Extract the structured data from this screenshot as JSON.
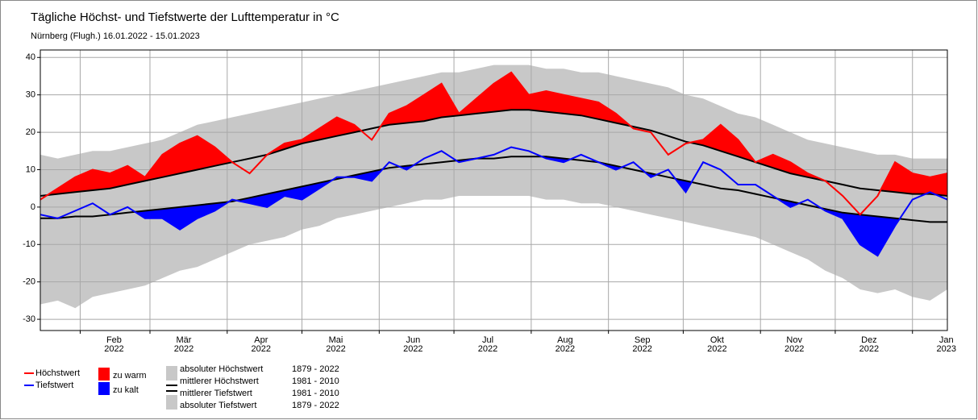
{
  "chart_data": {
    "type": "band-line",
    "title": "Tägliche Höchst- und Tiefstwerte der Lufttemperatur in °C",
    "subtitle": "Nürnberg (Flugh.) 16.01.2022 - 15.01.2023",
    "x": [
      0,
      7,
      14,
      21,
      28,
      35,
      42,
      49,
      56,
      63,
      70,
      77,
      84,
      91,
      98,
      105,
      112,
      119,
      126,
      133,
      140,
      147,
      154,
      161,
      168,
      175,
      182,
      189,
      196,
      203,
      210,
      217,
      224,
      231,
      238,
      245,
      252,
      259,
      266,
      273,
      280,
      287,
      294,
      301,
      308,
      315,
      322,
      329,
      336,
      343,
      350,
      357,
      364
    ],
    "xlim": [
      0,
      364
    ],
    "xticks": [
      {
        "value": 16,
        "label": "Feb\n2022"
      },
      {
        "value": 44,
        "label": "Mär\n2022"
      },
      {
        "value": 75,
        "label": "Apr\n2022"
      },
      {
        "value": 105,
        "label": "Mai\n2022"
      },
      {
        "value": 136,
        "label": "Jun\n2022"
      },
      {
        "value": 166,
        "label": "Jul\n2022"
      },
      {
        "value": 197,
        "label": "Aug\n2022"
      },
      {
        "value": 228,
        "label": "Sep\n2022"
      },
      {
        "value": 258,
        "label": "Okt\n2022"
      },
      {
        "value": 289,
        "label": "Nov\n2022"
      },
      {
        "value": 319,
        "label": "Dez\n2022"
      },
      {
        "value": 350,
        "label": "Jan\n2023"
      }
    ],
    "ylim": [
      -33,
      42
    ],
    "yticks": [
      -30,
      -20,
      -10,
      0,
      10,
      20,
      30,
      40
    ],
    "grid": true,
    "series": [
      {
        "name": "Höchstwert",
        "color": "#ff0000",
        "values": [
          2,
          5,
          8,
          10,
          9,
          11,
          8,
          14,
          17,
          19,
          16,
          12,
          9,
          14,
          17,
          18,
          21,
          24,
          22,
          18,
          25,
          27,
          30,
          33,
          25,
          29,
          33,
          36,
          30,
          31,
          30,
          29,
          28,
          25,
          21,
          20,
          14,
          17,
          18,
          22,
          18,
          12,
          14,
          12,
          9,
          7,
          3,
          -2,
          3,
          12,
          9,
          8,
          9
        ]
      },
      {
        "name": "Tiefstwert",
        "color": "#0000ff",
        "values": [
          -2,
          -3,
          -1,
          1,
          -2,
          0,
          -3,
          -3,
          -6,
          -3,
          -1,
          2,
          1,
          0,
          3,
          2,
          5,
          8,
          8,
          7,
          12,
          10,
          13,
          15,
          12,
          13,
          14,
          16,
          15,
          13,
          12,
          14,
          12,
          10,
          12,
          8,
          10,
          4,
          12,
          10,
          6,
          6,
          3,
          0,
          2,
          -1,
          -3,
          -10,
          -13,
          -5,
          2,
          4,
          2
        ]
      },
      {
        "name": "absoluter Höchstwert",
        "period": "1879 - 2022",
        "color": "#c8c8c8",
        "values": [
          14,
          13,
          14,
          15,
          15,
          16,
          17,
          18,
          20,
          22,
          23,
          24,
          25,
          26,
          27,
          28,
          29,
          30,
          31,
          32,
          33,
          34,
          35,
          36,
          36,
          37,
          38,
          38,
          38,
          37,
          37,
          36,
          36,
          35,
          34,
          33,
          32,
          30,
          29,
          27,
          25,
          24,
          22,
          20,
          18,
          17,
          16,
          15,
          14,
          14,
          13,
          13,
          13
        ]
      },
      {
        "name": "mittlerer Höchstwert",
        "period": "1981 - 2010",
        "color": "#000000",
        "values": [
          3,
          3.5,
          4,
          4.5,
          5,
          6,
          7,
          8,
          9,
          10,
          11,
          12,
          13,
          14,
          15.5,
          17,
          18,
          19,
          20,
          21,
          22,
          22.5,
          23,
          24,
          24.5,
          25,
          25.5,
          26,
          26,
          25.5,
          25,
          24.5,
          23.5,
          22.5,
          21.5,
          20.5,
          19,
          17.5,
          16.5,
          15,
          13.5,
          12,
          10.5,
          9,
          8,
          7,
          6,
          5,
          4.5,
          4,
          3.5,
          3.5,
          3
        ]
      },
      {
        "name": "mittlerer Tiefstwert",
        "period": "1981 - 2010",
        "color": "#000000",
        "values": [
          -3,
          -3,
          -2.5,
          -2.5,
          -2,
          -1.5,
          -1,
          -0.5,
          0,
          0.5,
          1,
          1.5,
          2.5,
          3.5,
          4.5,
          5.5,
          6.5,
          7.5,
          8.5,
          9.5,
          10.5,
          11,
          11.5,
          12,
          12.5,
          13,
          13,
          13.5,
          13.5,
          13.5,
          13,
          12.5,
          12,
          11,
          10,
          9,
          8,
          7,
          6,
          5,
          4.5,
          3.5,
          2.5,
          1.5,
          0.5,
          -0.5,
          -1.5,
          -2,
          -2.5,
          -3,
          -3.5,
          -4,
          -4
        ]
      },
      {
        "name": "absoluter Tiefstwert",
        "period": "1879 - 2022",
        "color": "#c8c8c8",
        "values": [
          -26,
          -25,
          -27,
          -24,
          -23,
          -22,
          -21,
          -19,
          -17,
          -16,
          -14,
          -12,
          -10,
          -9,
          -8,
          -6,
          -5,
          -3,
          -2,
          -1,
          0,
          1,
          2,
          2,
          3,
          3,
          3,
          3,
          3,
          2,
          2,
          1,
          1,
          0,
          -1,
          -2,
          -3,
          -4,
          -5,
          -6,
          -7,
          -8,
          -10,
          -12,
          -14,
          -17,
          -19,
          -22,
          -23,
          -22,
          -24,
          -25,
          -22
        ]
      }
    ],
    "fills": [
      {
        "name": "zu warm",
        "color": "#ff0000"
      },
      {
        "name": "zu kalt",
        "color": "#0000ff"
      }
    ]
  }
}
